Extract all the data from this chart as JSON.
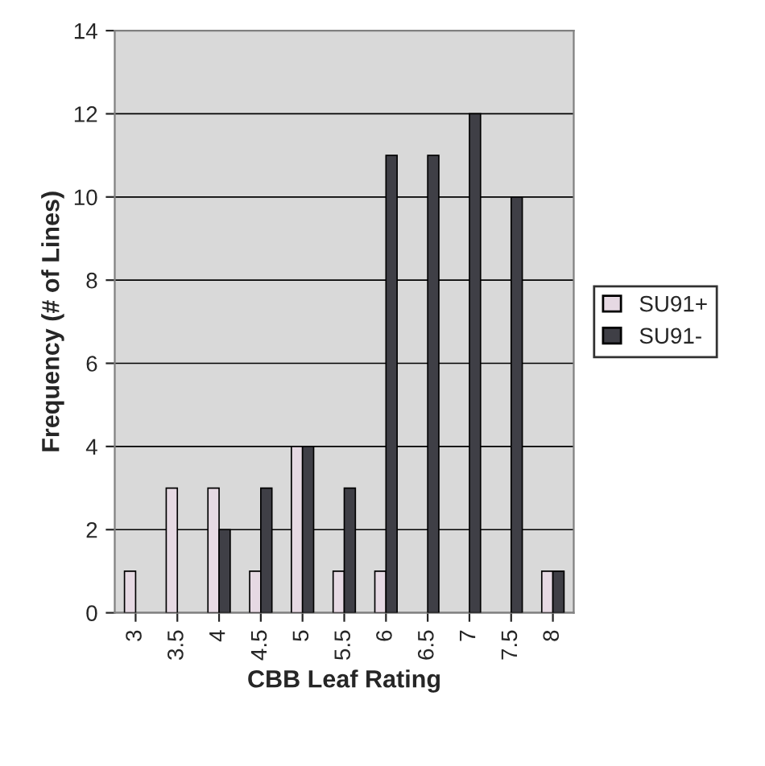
{
  "chart_data": {
    "type": "bar",
    "xlabel": "CBB Leaf Rating",
    "ylabel": "Frequency (# of Lines)",
    "categories": [
      "3",
      "3.5",
      "4",
      "4.5",
      "5",
      "5.5",
      "6",
      "6.5",
      "7",
      "7.5",
      "8"
    ],
    "series": [
      {
        "name": "SU91+",
        "color": "#e6d9e3",
        "values": [
          1,
          3,
          3,
          1,
          4,
          1,
          1,
          0,
          0,
          0,
          1
        ]
      },
      {
        "name": "SU91-",
        "color": "#3f3f46",
        "values": [
          0,
          0,
          2,
          3,
          4,
          3,
          11,
          11,
          12,
          10,
          1
        ]
      }
    ],
    "ylim": [
      0,
      14
    ],
    "yticks": [
      0,
      2,
      4,
      6,
      8,
      10,
      12,
      14
    ],
    "grid": "y",
    "legend": "right"
  }
}
